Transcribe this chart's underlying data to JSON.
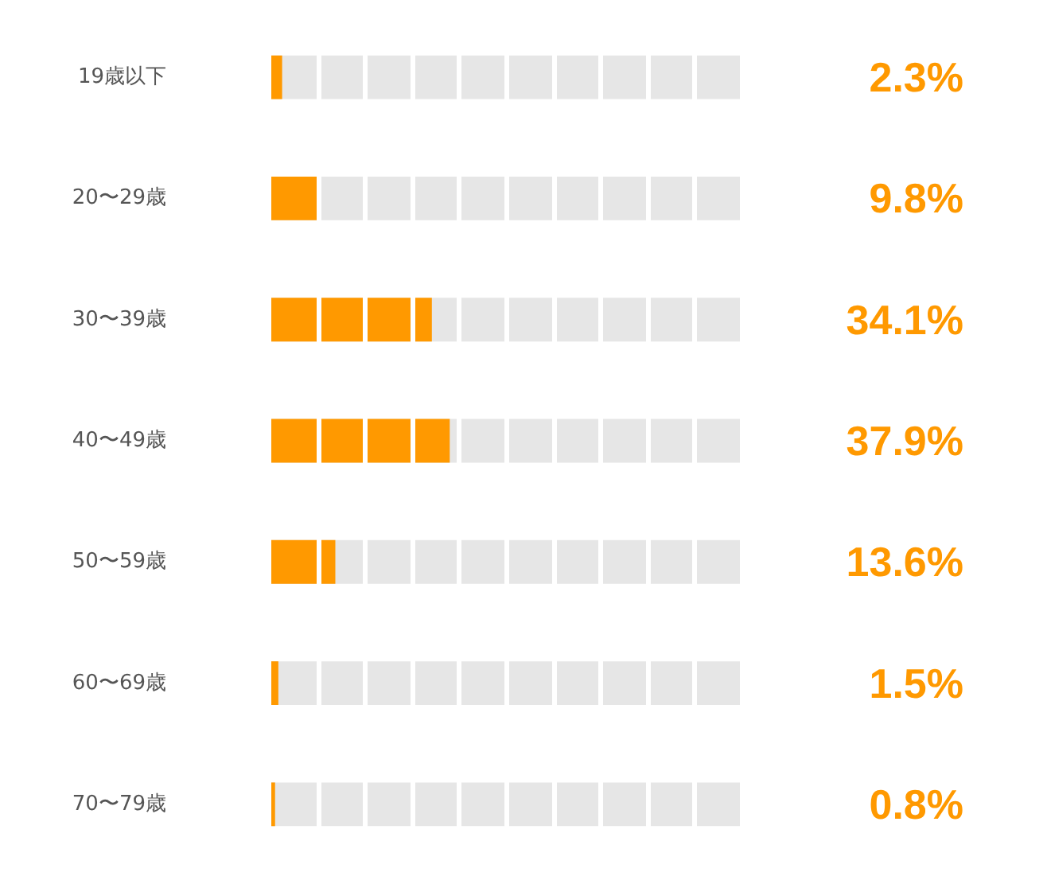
{
  "chart_data": {
    "type": "bar",
    "orientation": "horizontal",
    "categories": [
      "19歳以下",
      "20〜29歳",
      "30〜39歳",
      "40〜49歳",
      "50〜59歳",
      "60〜69歳",
      "70〜79歳"
    ],
    "values": [
      2.3,
      9.8,
      34.1,
      37.9,
      13.6,
      1.5,
      0.8
    ],
    "value_labels": [
      "2.3%",
      "9.8%",
      "34.1%",
      "37.9%",
      "13.6%",
      "1.5%",
      "0.8%"
    ],
    "color": "#ff9900",
    "bands": [
      {
        "axis": "x",
        "from": 0,
        "to": 100,
        "color": "#e6e6e6"
      }
    ],
    "tick_labels": "y"
  }
}
